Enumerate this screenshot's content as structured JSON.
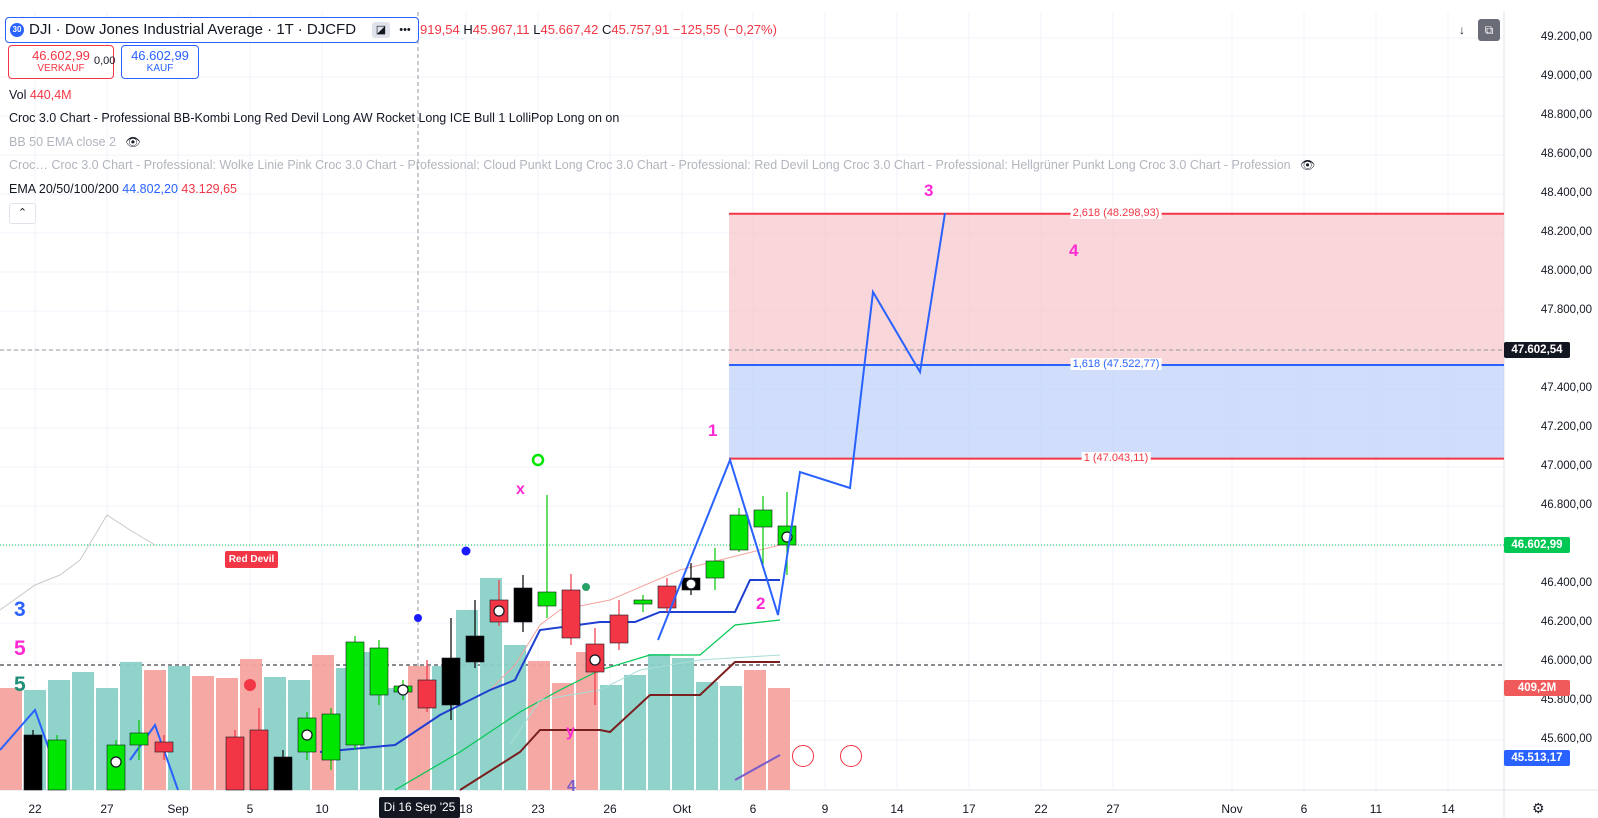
{
  "symbol": {
    "badge": "30",
    "title": "DJI · Dow Jones Industrial Average · 1T · DJCFD",
    "more_icon": "more-dots-icon",
    "ohlc": {
      "o_label": "",
      "o_value": "919,54",
      "h_label": "H",
      "h_value": "45.967,11",
      "l_label": "L",
      "l_value": "45.667,42",
      "c_label": "C",
      "c_value": "45.757,91",
      "change": "−125,55 (−0,27%)"
    }
  },
  "trade": {
    "sell_price": "46.602,99",
    "sell_label": "VERKAUF",
    "spread": "0,00",
    "buy_price": "46.602,99",
    "buy_label": "KAUF"
  },
  "legend": {
    "vol_label": "Vol",
    "vol_value": "440,4M",
    "croc_line": "Croc 3.0 Chart - Professional BB-Kombi Long Red Devil Long AW Rocket Long ICE Bull 1 LolliPop Long on on",
    "bb_line": "BB 50 EMA close 2",
    "croc_hidden": "Croc… Croc 3.0 Chart - Professional: Wolke Linie Pink Croc 3.0 Chart - Professional: Cloud Punkt Long Croc 3.0 Chart - Professional: Red Devil Long Croc 3.0 Chart - Professional: Hellgrüner Punkt Long Croc 3.0 Chart - Profession",
    "ema_label": "EMA 20/50/100/200",
    "ema_value_1": "44.802,20",
    "ema_value_2": "43.129,65"
  },
  "toolbar_right": {
    "download_icon": "download-arrow-icon",
    "fullscreen_icon": "fullscreen-icon"
  },
  "price_axis": {
    "labels": [
      "49.200,00",
      "49.000,00",
      "48.800,00",
      "48.600,00",
      "48.400,00",
      "48.200,00",
      "48.000,00",
      "47.800,00",
      "47.400,00",
      "47.200,00",
      "47.000,00",
      "46.800,00",
      "46.400,00",
      "46.200,00",
      "46.000,00",
      "45.800,00",
      "45.600,00"
    ],
    "tag_current": "47.602,54",
    "tag_bid": "46.602,99",
    "tag_volume": "409,2M",
    "tag_low": "45.513,17"
  },
  "time_axis": {
    "labels": [
      "22",
      "27",
      "Sep",
      "5",
      "10",
      "18",
      "23",
      "26",
      "Okt",
      "6",
      "9",
      "14",
      "17",
      "22",
      "27",
      "Nov",
      "6",
      "11",
      "14"
    ],
    "crosshair": "Di 16 Sep '25"
  },
  "fib_levels": [
    {
      "label": "2,618 (48.298,93)",
      "price": 48298.93,
      "color": "#f23645"
    },
    {
      "label": "1,618 (47.522,77)",
      "price": 47522.77,
      "color": "#2962ff"
    },
    {
      "label": "1 (47.043,11)",
      "price": 47043.11,
      "color": "#f23645"
    }
  ],
  "wave_labels": {
    "w1": "1",
    "w2": "2",
    "w3": "3",
    "w4": "4",
    "left3": "3",
    "left5a": "5",
    "left5b": "5",
    "x": "x",
    "y": "y",
    "b4": "4"
  },
  "signal_label": "Red Devil",
  "colors": {
    "up": "#00e600",
    "down": "#f23645",
    "accent": "#2962ff",
    "wave": "#ff2ad4"
  }
}
